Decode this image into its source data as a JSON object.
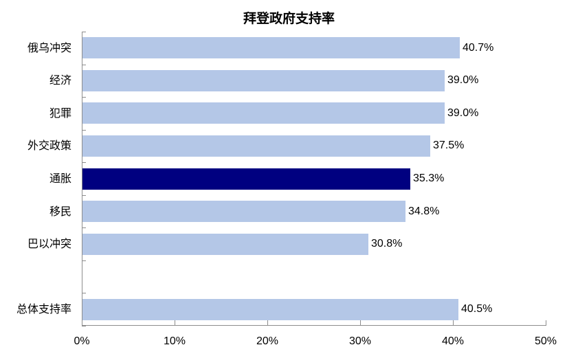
{
  "chart_data": {
    "type": "bar",
    "orientation": "horizontal",
    "title": "拜登政府支持率",
    "xlabel": "",
    "ylabel": "",
    "xlim": [
      0,
      50
    ],
    "x_ticks": [
      "0%",
      "10%",
      "20%",
      "30%",
      "40%",
      "50%"
    ],
    "grid": false,
    "legend": null,
    "categories": [
      "俄乌冲突",
      "经济",
      "犯罪",
      "外交政策",
      "通胀",
      "移民",
      "巴以冲突",
      "",
      "总体支持率"
    ],
    "values": [
      40.7,
      39.0,
      39.0,
      37.5,
      35.3,
      34.8,
      30.8,
      null,
      40.5
    ],
    "value_labels": [
      "40.7%",
      "39.0%",
      "39.0%",
      "37.5%",
      "35.3%",
      "34.8%",
      "30.8%",
      "",
      "40.5%"
    ],
    "highlight_category": "通胀",
    "colors": {
      "default": "#b4c7e7",
      "highlight": "#000080"
    }
  },
  "title": "拜登政府支持率",
  "axis": {
    "ticks": [
      "0%",
      "10%",
      "20%",
      "30%",
      "40%",
      "50%"
    ]
  },
  "bars": [
    {
      "label": "俄乌冲突",
      "value": 40.7,
      "text": "40.7%",
      "color": "#b4c7e7"
    },
    {
      "label": "经济",
      "value": 39.0,
      "text": "39.0%",
      "color": "#b4c7e7"
    },
    {
      "label": "犯罪",
      "value": 39.0,
      "text": "39.0%",
      "color": "#b4c7e7"
    },
    {
      "label": "外交政策",
      "value": 37.5,
      "text": "37.5%",
      "color": "#b4c7e7"
    },
    {
      "label": "通胀",
      "value": 35.3,
      "text": "35.3%",
      "color": "#000080"
    },
    {
      "label": "移民",
      "value": 34.8,
      "text": "34.8%",
      "color": "#b4c7e7"
    },
    {
      "label": "巴以冲突",
      "value": 30.8,
      "text": "30.8%",
      "color": "#b4c7e7"
    },
    {
      "label": "",
      "value": null,
      "text": "",
      "color": "#b4c7e7"
    },
    {
      "label": "总体支持率",
      "value": 40.5,
      "text": "40.5%",
      "color": "#b4c7e7"
    }
  ]
}
